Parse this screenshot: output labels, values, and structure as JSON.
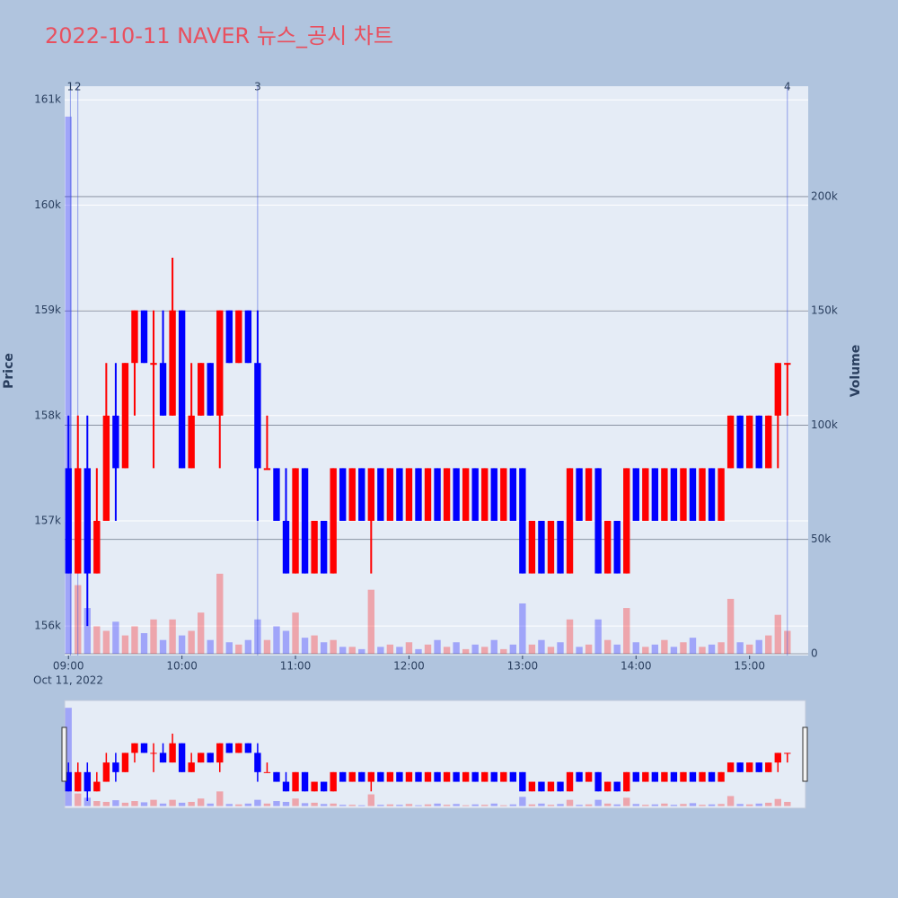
{
  "chart_data": {
    "type": "candlestick",
    "title": "2022-10-11 NAVER 뉴스_공시 차트",
    "x_date_label": "Oct 11, 2022",
    "ylabel": "Price",
    "y2label": "Volume",
    "increasing_color": "#ff0000",
    "decreasing_color": "#0000ff",
    "grid": true,
    "rangeslider": true,
    "x": [
      "2022-10-11 09:00",
      "2022-10-11 09:05",
      "2022-10-11 09:10",
      "2022-10-11 09:15",
      "2022-10-11 09:20",
      "2022-10-11 09:25",
      "2022-10-11 09:30",
      "2022-10-11 09:35",
      "2022-10-11 09:40",
      "2022-10-11 09:45",
      "2022-10-11 09:50",
      "2022-10-11 09:55",
      "2022-10-11 10:00",
      "2022-10-11 10:05",
      "2022-10-11 10:10",
      "2022-10-11 10:15",
      "2022-10-11 10:20",
      "2022-10-11 10:25",
      "2022-10-11 10:30",
      "2022-10-11 10:35",
      "2022-10-11 10:40",
      "2022-10-11 10:45",
      "2022-10-11 10:50",
      "2022-10-11 10:55",
      "2022-10-11 11:00",
      "2022-10-11 11:05",
      "2022-10-11 11:10",
      "2022-10-11 11:15",
      "2022-10-11 11:20",
      "2022-10-11 11:25",
      "2022-10-11 11:30",
      "2022-10-11 11:35",
      "2022-10-11 11:40",
      "2022-10-11 11:45",
      "2022-10-11 11:50",
      "2022-10-11 11:55",
      "2022-10-11 12:00",
      "2022-10-11 12:05",
      "2022-10-11 12:10",
      "2022-10-11 12:15",
      "2022-10-11 12:20",
      "2022-10-11 12:25",
      "2022-10-11 12:30",
      "2022-10-11 12:35",
      "2022-10-11 12:40",
      "2022-10-11 12:45",
      "2022-10-11 12:50",
      "2022-10-11 12:55",
      "2022-10-11 13:00",
      "2022-10-11 13:05",
      "2022-10-11 13:10",
      "2022-10-11 13:15",
      "2022-10-11 13:20",
      "2022-10-11 13:25",
      "2022-10-11 13:30",
      "2022-10-11 13:35",
      "2022-10-11 13:40",
      "2022-10-11 13:45",
      "2022-10-11 13:50",
      "2022-10-11 13:55",
      "2022-10-11 14:00",
      "2022-10-11 14:05",
      "2022-10-11 14:10",
      "2022-10-11 14:15",
      "2022-10-11 14:20",
      "2022-10-11 14:25",
      "2022-10-11 14:30",
      "2022-10-11 14:35",
      "2022-10-11 14:40",
      "2022-10-11 14:45",
      "2022-10-11 14:50",
      "2022-10-11 14:55",
      "2022-10-11 15:00",
      "2022-10-11 15:05",
      "2022-10-11 15:10",
      "2022-10-11 15:15",
      "2022-10-11 15:20"
    ],
    "open": [
      157500,
      156500,
      157500,
      156500,
      157000,
      158000,
      157500,
      158500,
      159000,
      158500,
      158500,
      158000,
      159000,
      157500,
      158000,
      158500,
      158000,
      159000,
      158500,
      159000,
      158500,
      157500,
      157500,
      157000,
      156500,
      157500,
      156500,
      157000,
      156500,
      157500,
      157000,
      157500,
      157000,
      157500,
      157000,
      157500,
      157000,
      157500,
      157000,
      157500,
      157000,
      157500,
      157000,
      157500,
      157000,
      157500,
      157000,
      157500,
      157500,
      156500,
      157000,
      156500,
      157000,
      156500,
      157500,
      157000,
      157500,
      156500,
      157000,
      156500,
      157500,
      157000,
      157500,
      157000,
      157500,
      157000,
      157500,
      157000,
      157500,
      157000,
      157500,
      158000,
      157500,
      158000,
      157500,
      158000,
      158500
    ],
    "high": [
      158000,
      158000,
      158000,
      157500,
      158500,
      158500,
      158500,
      159000,
      159000,
      159000,
      159000,
      159500,
      159000,
      158500,
      158500,
      158500,
      159000,
      159000,
      159000,
      159000,
      159000,
      158000,
      157500,
      157500,
      157500,
      157500,
      157000,
      157000,
      157500,
      157500,
      157500,
      157500,
      157500,
      157500,
      157500,
      157500,
      157500,
      157500,
      157500,
      157500,
      157500,
      157500,
      157500,
      157500,
      157500,
      157500,
      157500,
      157500,
      157500,
      157000,
      157000,
      157000,
      157000,
      157500,
      157500,
      157500,
      157500,
      157000,
      157000,
      157500,
      157500,
      157500,
      157500,
      157500,
      157500,
      157500,
      157500,
      157500,
      157500,
      157500,
      158000,
      158000,
      158000,
      158000,
      158000,
      158500,
      158500
    ],
    "low": [
      156500,
      156500,
      156000,
      156500,
      157000,
      157000,
      157500,
      158000,
      158500,
      157500,
      158000,
      158000,
      157500,
      157500,
      158000,
      158000,
      157500,
      158500,
      158500,
      158500,
      157000,
      157500,
      157000,
      156500,
      156500,
      156500,
      156500,
      156500,
      156500,
      157000,
      157000,
      157000,
      156500,
      157000,
      157000,
      157000,
      157000,
      157000,
      157000,
      157000,
      157000,
      157000,
      157000,
      157000,
      157000,
      157000,
      157000,
      157000,
      156500,
      156500,
      156500,
      156500,
      156500,
      156500,
      157000,
      157000,
      156500,
      156500,
      156500,
      156500,
      157000,
      157000,
      157000,
      157000,
      157000,
      157000,
      157000,
      157000,
      157000,
      157000,
      157500,
      157500,
      157500,
      157500,
      157500,
      157500,
      158000
    ],
    "close": [
      156500,
      157500,
      156500,
      157000,
      158000,
      157500,
      158500,
      159000,
      158500,
      158500,
      158000,
      159000,
      157500,
      158000,
      158500,
      158000,
      159000,
      158500,
      159000,
      158500,
      157500,
      157500,
      157000,
      156500,
      157500,
      156500,
      157000,
      156500,
      157500,
      157000,
      157500,
      157000,
      157500,
      157000,
      157500,
      157000,
      157500,
      157000,
      157500,
      157000,
      157500,
      157000,
      157500,
      157000,
      157500,
      157000,
      157500,
      157000,
      156500,
      157000,
      156500,
      157000,
      156500,
      157500,
      157000,
      157500,
      156500,
      157000,
      156500,
      157500,
      157000,
      157500,
      157000,
      157500,
      157000,
      157500,
      157000,
      157500,
      157000,
      157500,
      158000,
      157500,
      158000,
      157500,
      158000,
      158500,
      158500
    ],
    "volume": [
      235000,
      30000,
      20000,
      12000,
      10000,
      14000,
      8000,
      12000,
      9000,
      15000,
      6000,
      15000,
      8000,
      10000,
      18000,
      6000,
      35000,
      5000,
      4000,
      6000,
      15000,
      6000,
      12000,
      10000,
      18000,
      7000,
      8000,
      5000,
      6000,
      3000,
      3000,
      2000,
      28000,
      3000,
      4000,
      3000,
      5000,
      2000,
      4000,
      6000,
      3000,
      5000,
      2000,
      4000,
      3000,
      6000,
      2000,
      4000,
      22000,
      4000,
      6000,
      3000,
      5000,
      15000,
      3000,
      4000,
      15000,
      6000,
      4000,
      20000,
      5000,
      3000,
      4000,
      6000,
      3000,
      5000,
      7000,
      3000,
      4000,
      5000,
      24000,
      5000,
      4000,
      6000,
      8000,
      17000,
      10000
    ],
    "events": [
      {
        "x": "2022-10-11 09:01",
        "label": "1"
      },
      {
        "x": "2022-10-11 09:05",
        "label": "2"
      },
      {
        "x": "2022-10-11 10:40",
        "label": "3"
      },
      {
        "x": "2022-10-11 15:20",
        "label": "4"
      }
    ],
    "xlim": [
      "2022-10-11 08:58",
      "2022-10-11 15:31"
    ],
    "xticks": [
      {
        "value": "2022-10-11 09:00",
        "label": "09:00"
      },
      {
        "value": "2022-10-11 10:00",
        "label": "10:00"
      },
      {
        "value": "2022-10-11 11:00",
        "label": "11:00"
      },
      {
        "value": "2022-10-11 12:00",
        "label": "12:00"
      },
      {
        "value": "2022-10-11 13:00",
        "label": "13:00"
      },
      {
        "value": "2022-10-11 14:00",
        "label": "14:00"
      },
      {
        "value": "2022-10-11 15:00",
        "label": "15:00"
      }
    ],
    "ylim": [
      155720,
      161130
    ],
    "yticks": [
      {
        "value": 156000,
        "label": "156k"
      },
      {
        "value": 157000,
        "label": "157k"
      },
      {
        "value": 158000,
        "label": "158k"
      },
      {
        "value": 159000,
        "label": "159k"
      },
      {
        "value": 160000,
        "label": "160k"
      },
      {
        "value": 161000,
        "label": "161k"
      }
    ],
    "y2lim": [
      -800,
      248300
    ],
    "y2ticks": [
      0,
      {
        "value": 50000,
        "label": "50k"
      },
      {
        "value": 100000,
        "label": "100k"
      },
      {
        "value": 150000,
        "label": "150k"
      },
      {
        "value": 200000,
        "label": "200k"
      }
    ]
  }
}
